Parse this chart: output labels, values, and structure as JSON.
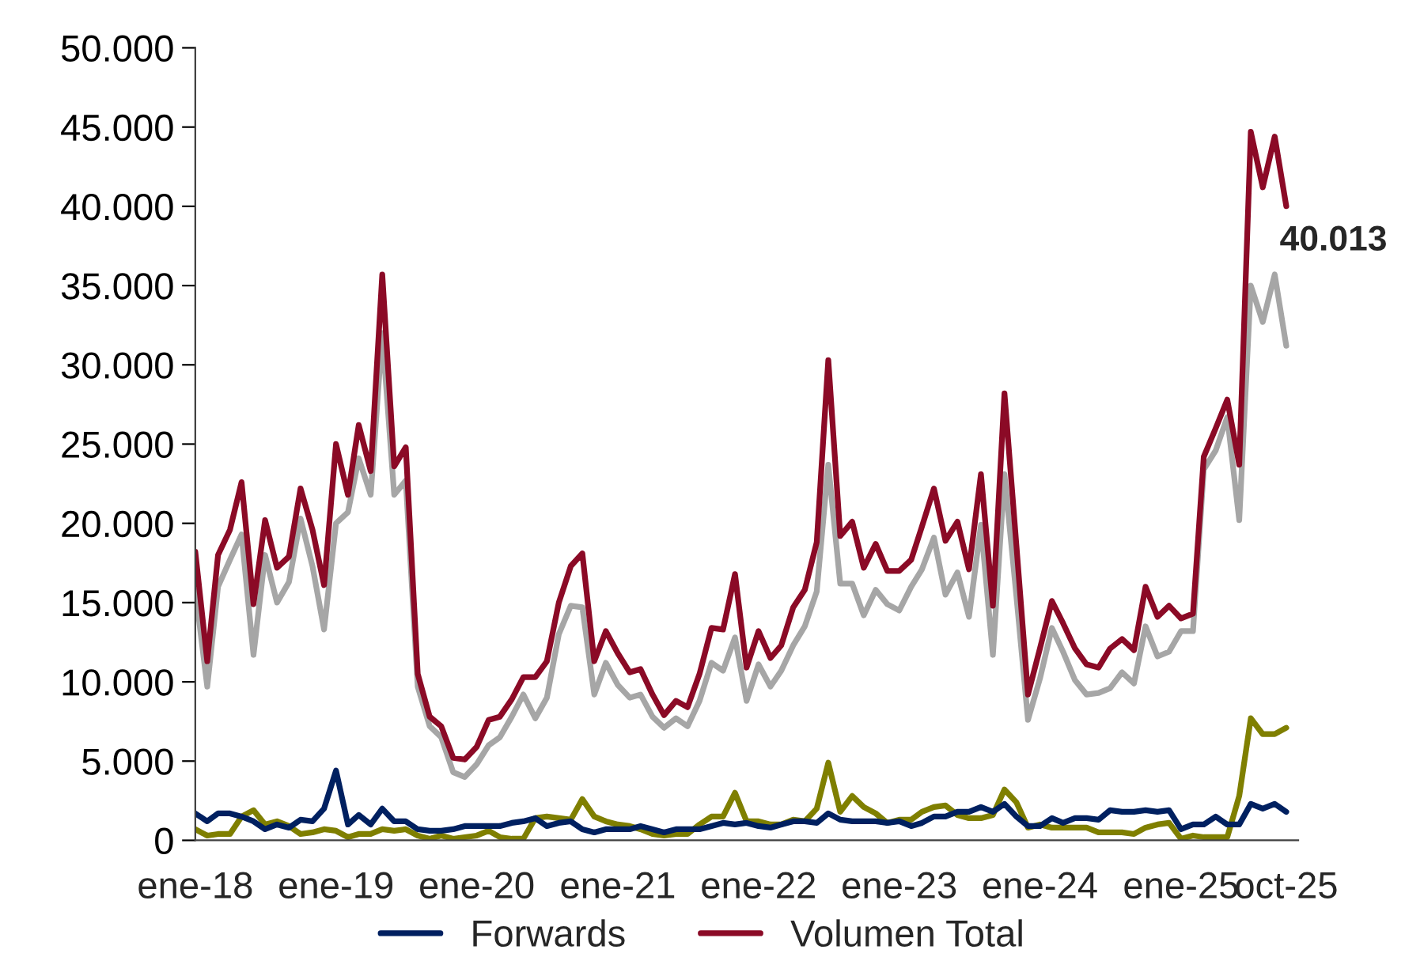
{
  "chart_data": {
    "type": "line",
    "x": [
      "2018-01",
      "2018-02",
      "2018-03",
      "2018-04",
      "2018-05",
      "2018-06",
      "2018-07",
      "2018-08",
      "2018-09",
      "2018-10",
      "2018-11",
      "2018-12",
      "2019-01",
      "2019-02",
      "2019-03",
      "2019-04",
      "2019-05",
      "2019-06",
      "2019-07",
      "2019-08",
      "2019-09",
      "2019-10",
      "2019-11",
      "2019-12",
      "2020-01",
      "2020-02",
      "2020-03",
      "2020-04",
      "2020-05",
      "2020-06",
      "2020-07",
      "2020-08",
      "2020-09",
      "2020-10",
      "2020-11",
      "2020-12",
      "2021-01",
      "2021-02",
      "2021-03",
      "2021-04",
      "2021-05",
      "2021-06",
      "2021-07",
      "2021-08",
      "2021-09",
      "2021-10",
      "2021-11",
      "2021-12",
      "2022-01",
      "2022-02",
      "2022-03",
      "2022-04",
      "2022-05",
      "2022-06",
      "2022-07",
      "2022-08",
      "2022-09",
      "2022-10",
      "2022-11",
      "2022-12",
      "2023-01",
      "2023-02",
      "2023-03",
      "2023-04",
      "2023-05",
      "2023-06",
      "2023-07",
      "2023-08",
      "2023-09",
      "2023-10",
      "2023-11",
      "2023-12",
      "2024-01",
      "2024-02",
      "2024-03",
      "2024-04",
      "2024-05",
      "2024-06",
      "2024-07",
      "2024-08",
      "2024-09",
      "2024-10",
      "2024-11",
      "2024-12",
      "2025-01",
      "2025-02",
      "2025-03",
      "2025-04",
      "2025-05",
      "2025-06",
      "2025-07",
      "2025-08",
      "2025-09",
      "2025-10"
    ],
    "series": [
      {
        "color": "#a6a6a6",
        "values": [
          15800,
          9700,
          16000,
          17700,
          19300,
          11700,
          18000,
          15000,
          16300,
          20300,
          17300,
          13300,
          20000,
          20700,
          24100,
          21800,
          32000,
          21800,
          22700,
          9700,
          7200,
          6500,
          4300,
          4000,
          4800,
          6000,
          6500,
          7800,
          9200,
          7700,
          9000,
          13000,
          14800,
          14700,
          9200,
          11200,
          9800,
          9000,
          9200,
          7800,
          7100,
          7700,
          7200,
          8800,
          11200,
          10700,
          12800,
          8800,
          11100,
          9700,
          10700,
          12300,
          13500,
          15700,
          23700,
          16200,
          16200,
          14200,
          15800,
          14900,
          14500,
          16000,
          17100,
          19100,
          15500,
          16900,
          14100,
          19900,
          11700,
          23100,
          15400,
          7600,
          10200,
          13400,
          11900,
          10100,
          9200,
          9300,
          9600,
          10600,
          9900,
          13500,
          11600,
          11900,
          13200,
          13200,
          23400,
          24600,
          26700,
          20200,
          35000,
          32700,
          35700,
          31200
        ]
      },
      {
        "color": "#7f7f00",
        "values": [
          700,
          300,
          400,
          400,
          1500,
          1900,
          1000,
          1200,
          900,
          400,
          500,
          700,
          600,
          200,
          400,
          400,
          700,
          600,
          700,
          300,
          100,
          300,
          100,
          200,
          300,
          600,
          200,
          100,
          100,
          1400,
          1500,
          1400,
          1300,
          2600,
          1500,
          1200,
          1000,
          900,
          700,
          400,
          300,
          400,
          400,
          1000,
          1500,
          1500,
          3000,
          1200,
          1200,
          1000,
          1000,
          1300,
          1200,
          2000,
          4900,
          1800,
          2800,
          2100,
          1700,
          1100,
          1300,
          1300,
          1800,
          2100,
          2200,
          1600,
          1400,
          1400,
          1600,
          3200,
          2400,
          800,
          1000,
          800,
          800,
          800,
          800,
          500,
          500,
          500,
          400,
          800,
          1000,
          1100,
          100,
          300,
          200,
          200,
          200,
          2800,
          7700,
          6700,
          6700,
          7100
        ]
      },
      {
        "name": "Forwards",
        "color": "#002060",
        "values": [
          1700,
          1200,
          1700,
          1700,
          1500,
          1200,
          700,
          1000,
          800,
          1300,
          1200,
          2000,
          4400,
          1000,
          1600,
          1000,
          2000,
          1200,
          1200,
          700,
          600,
          600,
          700,
          900,
          900,
          900,
          900,
          1100,
          1200,
          1400,
          900,
          1100,
          1200,
          700,
          500,
          700,
          700,
          700,
          900,
          700,
          500,
          700,
          700,
          700,
          900,
          1100,
          1000,
          1100,
          900,
          800,
          1000,
          1200,
          1200,
          1100,
          1700,
          1300,
          1200,
          1200,
          1200,
          1100,
          1200,
          900,
          1100,
          1500,
          1500,
          1800,
          1800,
          2100,
          1800,
          2300,
          1500,
          900,
          900,
          1400,
          1100,
          1400,
          1400,
          1300,
          1900,
          1800,
          1800,
          1900,
          1800,
          1900,
          700,
          1000,
          1000,
          1500,
          1000,
          1000,
          2300,
          2000,
          2300,
          1800
        ]
      },
      {
        "name": "Volumen Total",
        "color": "#8b0a26",
        "values": [
          18200,
          11300,
          18000,
          19600,
          22600,
          14900,
          20200,
          17200,
          17900,
          22200,
          19600,
          16100,
          25000,
          21800,
          26200,
          23300,
          35700,
          23600,
          24800,
          10500,
          7800,
          7200,
          5200,
          5100,
          5900,
          7600,
          7800,
          8900,
          10300,
          10300,
          11300,
          15000,
          17300,
          18100,
          11300,
          13200,
          11800,
          10600,
          10800,
          9200,
          7900,
          8800,
          8400,
          10500,
          13400,
          13300,
          16800,
          10900,
          13200,
          11500,
          12300,
          14700,
          15800,
          18800,
          30300,
          19200,
          20100,
          17200,
          18700,
          17000,
          17000,
          17700,
          19800,
          22200,
          18900,
          20100,
          17100,
          23100,
          14800,
          28200,
          18600,
          9200,
          12100,
          15100,
          13700,
          12100,
          11100,
          10900,
          12100,
          12700,
          12000,
          16000,
          14100,
          14800,
          14000,
          14300,
          24200,
          26000,
          27800,
          23700,
          44700,
          41200,
          44400,
          40013
        ]
      }
    ],
    "xlim": [
      "2018-01",
      "2025-11"
    ],
    "xticks": [
      {
        "value": "2018-01",
        "label": "ene-18"
      },
      {
        "value": "2019-01",
        "label": "ene-19"
      },
      {
        "value": "2020-01",
        "label": "ene-20"
      },
      {
        "value": "2021-01",
        "label": "ene-21"
      },
      {
        "value": "2022-01",
        "label": "ene-22"
      },
      {
        "value": "2023-01",
        "label": "ene-23"
      },
      {
        "value": "2024-01",
        "label": "ene-24"
      },
      {
        "value": "2025-01",
        "label": "ene-25"
      },
      {
        "value": "2025-10",
        "label": "oct-25"
      }
    ],
    "ylim": [
      0,
      50000
    ],
    "yticks": [
      {
        "value": 0,
        "label": "0"
      },
      {
        "value": 5000,
        "label": "5.000"
      },
      {
        "value": 10000,
        "label": "10.000"
      },
      {
        "value": 15000,
        "label": "15.000"
      },
      {
        "value": 20000,
        "label": "20.000"
      },
      {
        "value": 25000,
        "label": "25.000"
      },
      {
        "value": 30000,
        "label": "30.000"
      },
      {
        "value": 35000,
        "label": "35.000"
      },
      {
        "value": 40000,
        "label": "40.000"
      },
      {
        "value": 45000,
        "label": "45.000"
      },
      {
        "value": 50000,
        "label": "50.000"
      }
    ],
    "annotations": [
      {
        "text": "40.013",
        "x": "2025-10",
        "y": 40013
      }
    ],
    "grid": false,
    "legend": "bottom"
  }
}
